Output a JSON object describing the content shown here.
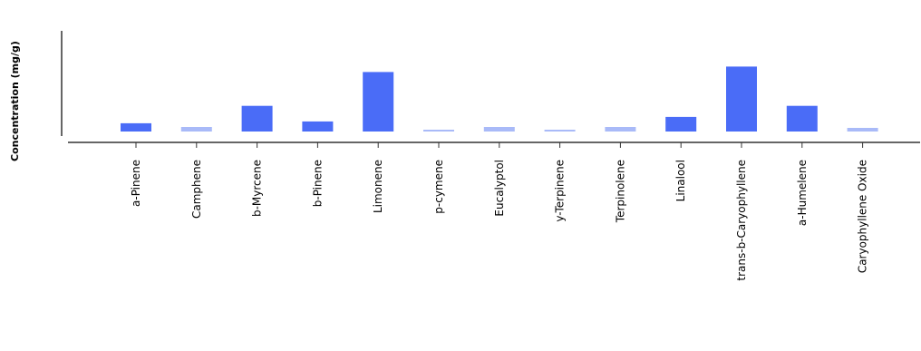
{
  "chart_data": {
    "type": "bar",
    "title": "",
    "xlabel": "",
    "ylabel": "Concentration (mg/g)",
    "categories": [
      "a-Pinene",
      "Camphene",
      "b-Myrcene",
      "b-Pinene",
      "Limonene",
      "p-cymene",
      "Eucalyptol",
      "y-Terpinene",
      "Terpinolene",
      "Linalool",
      "trans-b-Caryophyllene",
      "a-Humelene",
      "Caryophyllene Oxide"
    ],
    "values": [
      0.9,
      0.5,
      2.8,
      1.1,
      6.5,
      0.2,
      0.5,
      0.2,
      0.5,
      1.6,
      7.1,
      2.8,
      0.4
    ],
    "highlight": [
      true,
      false,
      true,
      true,
      true,
      false,
      false,
      false,
      false,
      true,
      true,
      true,
      false
    ],
    "ylim": [
      0,
      11
    ],
    "grid": false,
    "legend": "none",
    "colors": {
      "bar": "#4a6cf7",
      "bar_light": "#a9baf8",
      "axis": "#333333",
      "text": "#000000"
    }
  }
}
